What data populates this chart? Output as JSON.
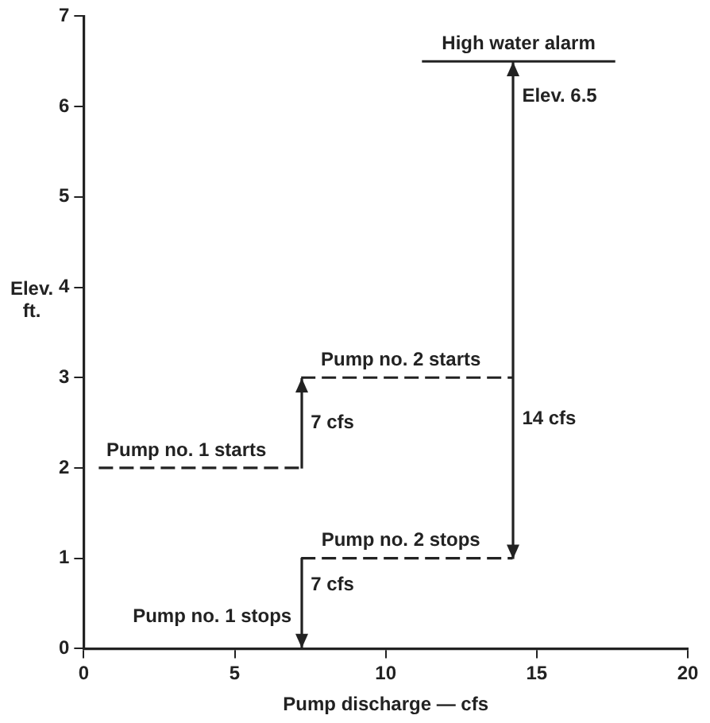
{
  "chart_data": {
    "type": "line",
    "xlabel": "Pump discharge — cfs",
    "ylabel": "Elev. ft.",
    "xlim": [
      0,
      20
    ],
    "xticks": [
      0,
      5,
      10,
      15,
      20
    ],
    "ylim": [
      0,
      7
    ],
    "yticks": [
      0,
      1,
      2,
      3,
      4,
      5,
      6,
      7
    ],
    "grid": false,
    "legend": false,
    "marker": "none",
    "series": [
      {
        "color": "#222222",
        "line_style": "dashed",
        "x": [
          0.5,
          7.2
        ],
        "values": [
          2,
          2
        ]
      },
      {
        "color": "#222222",
        "line_style": "dashed",
        "x": [
          7.2,
          14.2
        ],
        "values": [
          3,
          3
        ]
      },
      {
        "color": "#222222",
        "line_style": "dashed",
        "x": [
          7.2,
          14.2
        ],
        "values": [
          1,
          1
        ]
      },
      {
        "color": "#222222",
        "line_style": "solid",
        "x": [
          11.2,
          17.6
        ],
        "values": [
          6.5,
          6.5
        ]
      }
    ],
    "annotations": [
      {
        "text": "High water alarm",
        "x": 14.4,
        "y": 6.5
      },
      "Elev. 6.5",
      {
        "text": "Pump no. 2 starts",
        "x": 10.5,
        "y": 3
      },
      "7 cfs",
      "14 cfs",
      {
        "text": "Pump no. 1 starts",
        "x": 3.4,
        "y": 2
      },
      {
        "text": "Pump no. 2 stops",
        "x": 10.5,
        "y": 1
      },
      "7 cfs",
      {
        "text": "Pump no. 1 stops",
        "x": 7.2,
        "y": 1
      }
    ]
  }
}
